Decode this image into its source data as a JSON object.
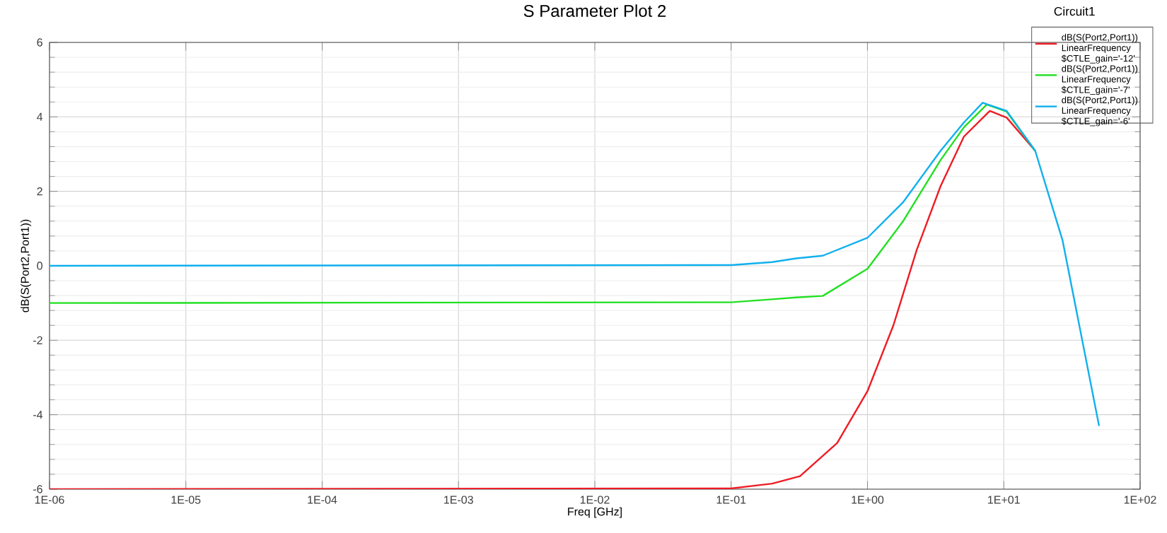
{
  "chart_data": {
    "type": "line",
    "title": "S Parameter Plot 2",
    "xlabel": "Freq [GHz]",
    "ylabel": "dB(S(Port2,Port1))",
    "log": "x",
    "grid": true,
    "legend": "top right",
    "line_style": "solid",
    "marker": "none",
    "xlim": [
      1e-06,
      100
    ],
    "ylim": [
      -6,
      6
    ],
    "xticks": [
      {
        "value": 1e-06,
        "label": "1E-06"
      },
      {
        "value": 1e-05,
        "label": "1E-05"
      },
      {
        "value": 0.0001,
        "label": "1E-04"
      },
      {
        "value": 0.001,
        "label": "1E-03"
      },
      {
        "value": 0.01,
        "label": "1E-02"
      },
      {
        "value": 0.1,
        "label": "1E-01"
      },
      {
        "value": 1,
        "label": "1E+00"
      },
      {
        "value": 10,
        "label": "1E+01"
      },
      {
        "value": 100,
        "label": "1E+02"
      }
    ],
    "yticks": [
      -6,
      -4,
      -2,
      0,
      2,
      4,
      6
    ],
    "annotations": [
      "Circuit1"
    ],
    "series": [
      {
        "name": "dB(S(Port2,Port1)) LinearFrequency $CTLE_gain='-12'",
        "color": "#ee1c25",
        "x": [
          1e-06,
          0.1,
          0.2,
          0.32,
          0.6,
          1,
          1.55,
          2.3,
          3.44,
          5.1,
          7.9,
          10.5,
          17
        ],
        "values": [
          -6,
          -5.98,
          -5.85,
          -5.65,
          -4.76,
          -3.37,
          -1.6,
          0.43,
          2.14,
          3.47,
          4.16,
          3.98,
          3.09
        ]
      },
      {
        "name": "dB(S(Port2,Port1)) LinearFrequency $CTLE_gain='-7'",
        "color": "#22e022",
        "x": [
          1e-06,
          0.1,
          0.2,
          0.3,
          0.47,
          1,
          1.82,
          3.44,
          5.1,
          7.5,
          10.5,
          17
        ],
        "values": [
          -1,
          -0.98,
          -0.9,
          -0.85,
          -0.81,
          -0.08,
          1.19,
          2.84,
          3.72,
          4.33,
          4.14,
          3.09
        ]
      },
      {
        "name": "dB(S(Port2,Port1)) LinearFrequency $CTLE_gain='-6'",
        "color": "#10b0ee",
        "x": [
          1e-06,
          0.1,
          0.2,
          0.3,
          0.47,
          1,
          1.82,
          3.44,
          5.1,
          7,
          10.5,
          17,
          27,
          50
        ],
        "values": [
          0,
          0.02,
          0.1,
          0.2,
          0.27,
          0.75,
          1.7,
          3.09,
          3.85,
          4.38,
          4.16,
          3.09,
          0.68,
          -4.3
        ]
      }
    ]
  }
}
